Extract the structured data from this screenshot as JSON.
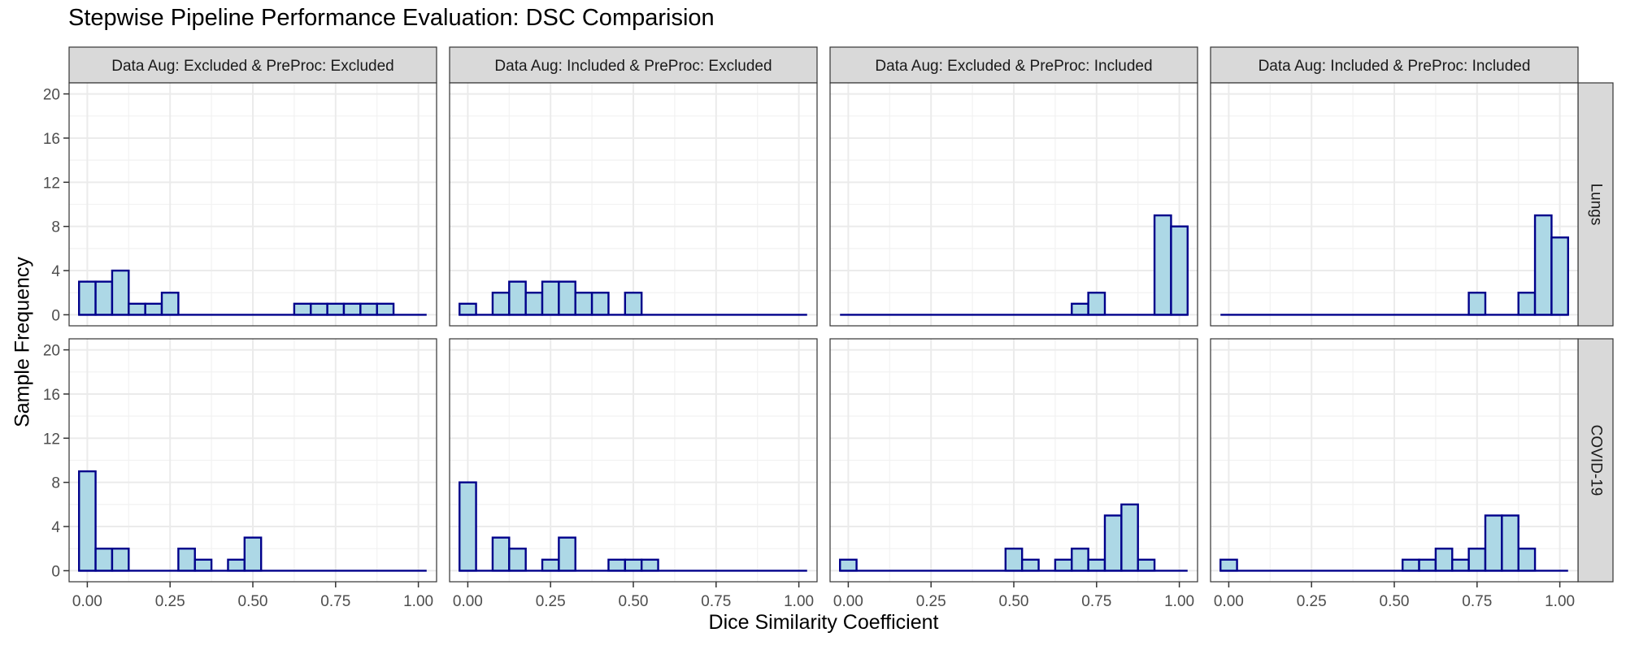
{
  "chart_data": {
    "type": "histogram-facet",
    "title": "Stepwise Pipeline Performance Evaluation: DSC Comparision",
    "xlabel": "Dice Similarity Coefficient",
    "ylabel": "Sample Frequency",
    "x_ticks": [
      0,
      0.25,
      0.5,
      0.75,
      1
    ],
    "x_tick_labels": [
      "0.00",
      "0.25",
      "0.50",
      "0.75",
      "1.00"
    ],
    "y_ticks": [
      0,
      4,
      8,
      12,
      16,
      20
    ],
    "y_tick_labels": [
      "0",
      "4",
      "8",
      "12",
      "16",
      "20"
    ],
    "xlim": [
      -0.055,
      1.055
    ],
    "ylim": [
      -1,
      21
    ],
    "bin_width": 0.05,
    "bin_centers": [
      0,
      0.05,
      0.1,
      0.15,
      0.2,
      0.25,
      0.3,
      0.35,
      0.4,
      0.45,
      0.5,
      0.55,
      0.6,
      0.65,
      0.7,
      0.75,
      0.8,
      0.85,
      0.9,
      0.95,
      1.0
    ],
    "columns": [
      "Data Aug: Excluded & PreProc: Excluded",
      "Data Aug: Included & PreProc: Excluded",
      "Data Aug: Excluded & PreProc: Included",
      "Data Aug: Included & PreProc: Included"
    ],
    "rows": [
      "Lungs",
      "COVID-19"
    ],
    "counts": [
      [
        [
          3,
          3,
          4,
          1,
          1,
          2,
          0,
          0,
          0,
          0,
          0,
          0,
          0,
          1,
          1,
          1,
          1,
          1,
          1,
          0,
          0
        ],
        [
          1,
          0,
          2,
          3,
          2,
          3,
          3,
          2,
          2,
          0,
          2,
          0,
          0,
          0,
          0,
          0,
          0,
          0,
          0,
          0,
          0
        ],
        [
          0,
          0,
          0,
          0,
          0,
          0,
          0,
          0,
          0,
          0,
          0,
          0,
          0,
          0,
          1,
          2,
          0,
          0,
          0,
          9,
          8
        ],
        [
          0,
          0,
          0,
          0,
          0,
          0,
          0,
          0,
          0,
          0,
          0,
          0,
          0,
          0,
          0,
          2,
          0,
          0,
          2,
          9,
          7
        ]
      ],
      [
        [
          9,
          2,
          2,
          0,
          0,
          0,
          2,
          1,
          0,
          1,
          3,
          0,
          0,
          0,
          0,
          0,
          0,
          0,
          0,
          0,
          0
        ],
        [
          8,
          0,
          3,
          2,
          0,
          1,
          3,
          0,
          0,
          1,
          1,
          1,
          0,
          0,
          0,
          0,
          0,
          0,
          0,
          0,
          0
        ],
        [
          1,
          0,
          0,
          0,
          0,
          0,
          0,
          0,
          0,
          0,
          2,
          1,
          0,
          1,
          2,
          1,
          5,
          6,
          1,
          0,
          0
        ],
        [
          1,
          0,
          0,
          0,
          0,
          0,
          0,
          0,
          0,
          0,
          0,
          1,
          1,
          2,
          1,
          2,
          5,
          5,
          2,
          0,
          0
        ]
      ]
    ],
    "fill_color": "#add8e6",
    "stroke_color": "#00008b",
    "grid": true,
    "legend": "none"
  }
}
